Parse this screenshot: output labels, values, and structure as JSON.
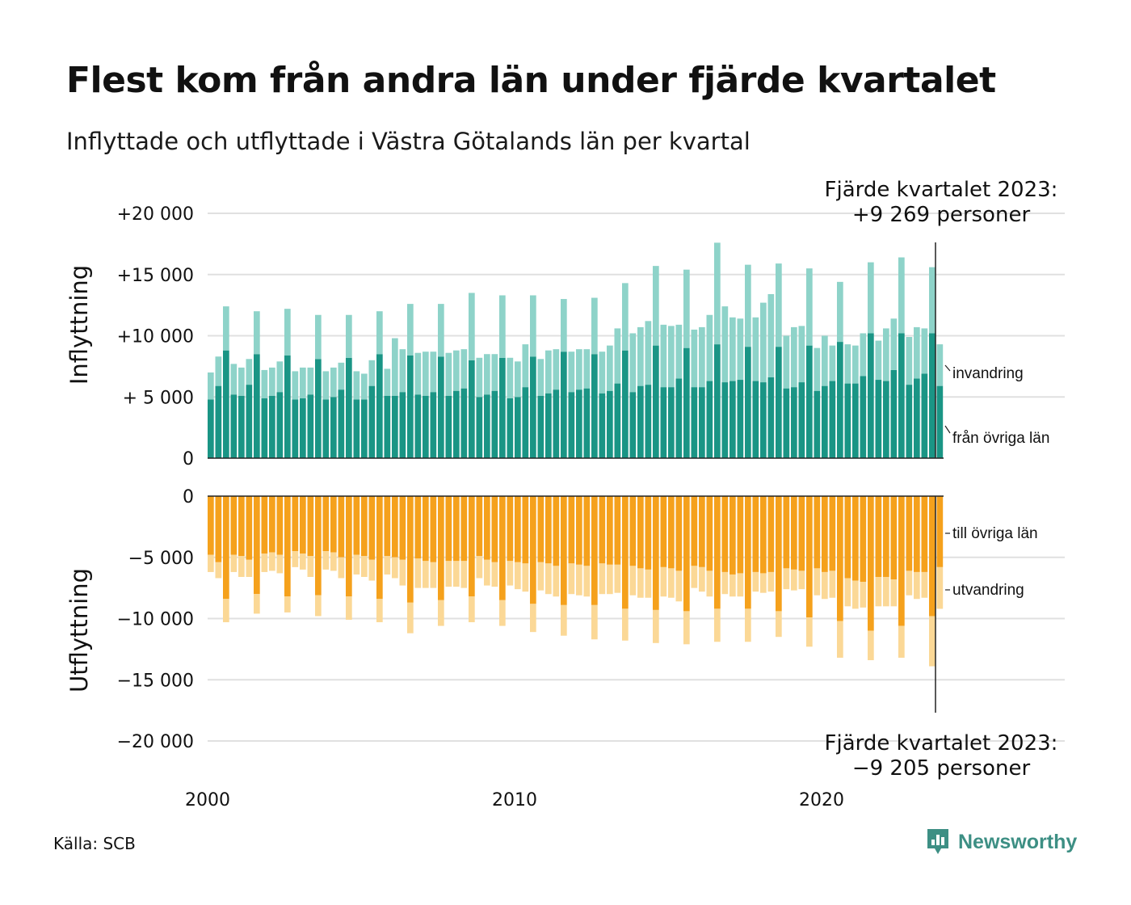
{
  "title": "Flest kom från andra län under fjärde kvartalet",
  "subtitle": "Inflyttade och utflyttade i Västra Götalands län per kvartal",
  "source": "Källa: SCB",
  "brand": {
    "name": "Newsworthy",
    "icon": "newsworthy-logo-icon",
    "color": "#3d8f84"
  },
  "chart_data": {
    "type": "bar",
    "stacked": true,
    "periods": "quarterly, Q1 2000 – Q4 2023",
    "x_ticks": [
      "2000",
      "2010",
      "2020"
    ],
    "x_tick_values": [
      2000,
      2010,
      2020
    ],
    "top_panel": {
      "ylabel": "Inflyttning",
      "ylim": [
        0,
        20000
      ],
      "y_ticks": [
        0,
        5000,
        10000,
        15000,
        20000
      ],
      "y_tick_labels": [
        "0",
        "+ 5 000",
        "+10 000",
        "+15 000",
        "+20 000"
      ],
      "annotation": [
        "Fjärde kvartalet 2023:",
        "+9 269 personer"
      ],
      "series": [
        {
          "name": "från övriga län",
          "color": "#1a9585",
          "values": [
            4800,
            5900,
            8800,
            5200,
            5100,
            6000,
            8500,
            4900,
            5100,
            5400,
            8400,
            4800,
            4900,
            5200,
            8100,
            4800,
            5000,
            5600,
            8200,
            4800,
            4800,
            5900,
            8500,
            5100,
            5100,
            5400,
            8400,
            5200,
            5100,
            5400,
            8300,
            5100,
            5500,
            5700,
            8000,
            5000,
            5200,
            5500,
            8200,
            4900,
            5000,
            5800,
            8300,
            5100,
            5300,
            5600,
            8700,
            5400,
            5600,
            5700,
            8500,
            5300,
            5500,
            6100,
            8800,
            5400,
            5900,
            6000,
            9200,
            5800,
            5800,
            6500,
            9000,
            5800,
            5800,
            6300,
            9300,
            6200,
            6300,
            6400,
            9100,
            6300,
            6200,
            6600,
            9100,
            5700,
            5800,
            6200,
            9200,
            5500,
            5900,
            6300,
            9500,
            6100,
            6100,
            6700,
            10200,
            6400,
            6300,
            7200,
            10200,
            6000,
            6500,
            6900,
            10200,
            5900
          ]
        },
        {
          "name": "invandring",
          "color": "#8ed3c9",
          "values": [
            2200,
            2400,
            3600,
            2500,
            2300,
            2100,
            3500,
            2300,
            2300,
            2500,
            3800,
            2300,
            2500,
            2200,
            3600,
            2300,
            2400,
            2200,
            3500,
            2300,
            2100,
            2100,
            3500,
            2200,
            4700,
            3500,
            4200,
            3400,
            3600,
            3300,
            4300,
            3500,
            3300,
            3200,
            5500,
            3200,
            3300,
            3000,
            5100,
            3300,
            2900,
            3500,
            5000,
            3000,
            3500,
            3300,
            4300,
            3300,
            3300,
            3200,
            4600,
            3400,
            3700,
            4500,
            5500,
            4800,
            4800,
            5200,
            6500,
            5100,
            5000,
            4400,
            6400,
            4700,
            4900,
            5400,
            8300,
            6200,
            5200,
            5000,
            6700,
            5200,
            6500,
            6800,
            6800,
            4300,
            4900,
            4600,
            6300,
            3500,
            4100,
            2900,
            4900,
            3200,
            3100,
            3500,
            5800,
            3200,
            4300,
            4200,
            6200,
            3900,
            4200,
            3700,
            5400,
            3400
          ]
        }
      ]
    },
    "bottom_panel": {
      "ylabel": "Utflyttning",
      "ylim": [
        -20000,
        0
      ],
      "y_ticks": [
        0,
        -5000,
        -10000,
        -15000,
        -20000
      ],
      "y_tick_labels": [
        "0",
        "−5 000",
        "−10 000",
        "−15 000",
        "−20 000"
      ],
      "annotation": [
        "Fjärde kvartalet 2023:",
        "−9 205 personer"
      ],
      "series": [
        {
          "name": "till övriga län",
          "color": "#f5a11c",
          "values": [
            -4800,
            -5400,
            -8400,
            -4800,
            -4900,
            -5200,
            -8000,
            -4700,
            -4600,
            -4800,
            -8200,
            -4500,
            -4700,
            -4900,
            -8100,
            -4500,
            -4600,
            -5000,
            -8200,
            -4800,
            -4900,
            -5200,
            -8400,
            -4900,
            -5000,
            -5200,
            -8700,
            -5100,
            -5300,
            -5400,
            -8500,
            -5300,
            -5300,
            -5300,
            -8200,
            -4900,
            -5200,
            -5400,
            -8500,
            -5300,
            -5400,
            -5500,
            -8800,
            -5400,
            -5500,
            -5700,
            -8900,
            -5500,
            -5600,
            -5700,
            -8900,
            -5500,
            -5600,
            -5600,
            -9200,
            -5700,
            -5900,
            -6000,
            -9300,
            -5800,
            -5900,
            -6100,
            -9400,
            -5700,
            -5800,
            -6100,
            -9200,
            -6200,
            -6400,
            -6300,
            -9200,
            -6200,
            -6300,
            -6200,
            -9400,
            -5900,
            -6000,
            -6100,
            -9900,
            -5900,
            -6200,
            -6100,
            -10200,
            -6700,
            -6900,
            -7000,
            -11000,
            -6600,
            -6600,
            -6800,
            -10600,
            -6100,
            -6200,
            -6200,
            -9800,
            -5800
          ]
        },
        {
          "name": "utvandring",
          "color": "#fbd896",
          "values": [
            -1400,
            -1300,
            -1900,
            -1400,
            -1700,
            -1400,
            -1600,
            -1500,
            -1500,
            -1500,
            -1300,
            -1300,
            -1300,
            -1700,
            -1700,
            -1500,
            -1500,
            -1700,
            -1900,
            -1600,
            -1700,
            -1700,
            -1900,
            -1500,
            -1700,
            -2100,
            -2500,
            -2400,
            -2200,
            -2100,
            -2100,
            -2100,
            -2100,
            -2200,
            -2100,
            -1800,
            -2100,
            -2000,
            -2100,
            -2000,
            -2200,
            -2300,
            -2300,
            -2300,
            -2500,
            -2500,
            -2500,
            -2500,
            -2500,
            -2500,
            -2800,
            -2500,
            -2400,
            -2300,
            -2600,
            -2400,
            -2400,
            -2300,
            -2700,
            -2400,
            -2400,
            -2500,
            -2700,
            -1800,
            -2000,
            -2100,
            -2700,
            -1800,
            -1800,
            -1900,
            -2700,
            -1600,
            -1600,
            -1600,
            -2100,
            -1700,
            -1700,
            -1500,
            -2400,
            -2200,
            -2200,
            -2200,
            -3000,
            -2300,
            -2300,
            -2100,
            -2400,
            -2400,
            -2400,
            -2200,
            -2600,
            -2000,
            -2200,
            -2100,
            -4100,
            -3405
          ]
        }
      ]
    },
    "legend_placement": "right, labels at end of bars",
    "grid": true
  }
}
